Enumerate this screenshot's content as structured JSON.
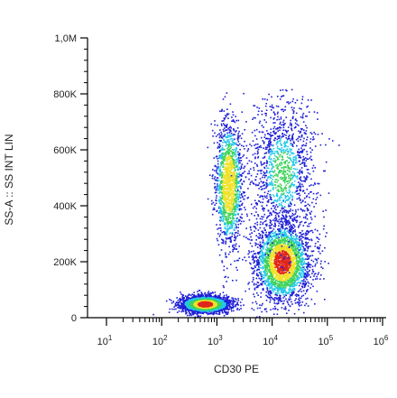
{
  "chart_data": {
    "type": "scatter",
    "title": "",
    "xlabel": "CD30 PE",
    "ylabel": "SS-A :: SS INT LIN",
    "x_scale": "log",
    "xlim": [
      10,
      1000000
    ],
    "x_ticks": [
      {
        "value": 10,
        "base": "10",
        "exp": "1"
      },
      {
        "value": 100,
        "base": "10",
        "exp": "2"
      },
      {
        "value": 1000,
        "base": "10",
        "exp": "3"
      },
      {
        "value": 10000,
        "base": "10",
        "exp": "4"
      },
      {
        "value": 100000,
        "base": "10",
        "exp": "5"
      },
      {
        "value": 1000000,
        "base": "10",
        "exp": "6"
      }
    ],
    "y_scale": "linear",
    "ylim": [
      0,
      1000000
    ],
    "y_ticks": [
      {
        "value": 0,
        "label": "0"
      },
      {
        "value": 200000,
        "label": "200K"
      },
      {
        "value": 400000,
        "label": "400K"
      },
      {
        "value": 600000,
        "label": "600K"
      },
      {
        "value": 800000,
        "label": "800K"
      },
      {
        "value": 1000000,
        "label": "1,0M"
      }
    ],
    "grid": false,
    "colormap": "density: blue-cyan-green-yellow-red",
    "colors": {
      "low": "#1f1fd6",
      "mid_low": "#22c8e8",
      "mid": "#3ed25a",
      "mid_high": "#f0e22a",
      "high": "#e0261c"
    },
    "populations": [
      {
        "x_center": 600,
        "y_center": 50000,
        "x_spread_decades": 0.22,
        "y_spread": 15000,
        "density": "high"
      },
      {
        "x_center": 1600,
        "y_center": 480000,
        "x_spread_decades": 0.12,
        "y_spread": 110000,
        "density": "medium"
      },
      {
        "x_center": 15000,
        "y_center": 200000,
        "x_spread_decades": 0.25,
        "y_spread": 70000,
        "density": "high"
      },
      {
        "x_center": 15000,
        "y_center": 520000,
        "x_spread_decades": 0.3,
        "y_spread": 130000,
        "density": "low"
      }
    ]
  }
}
